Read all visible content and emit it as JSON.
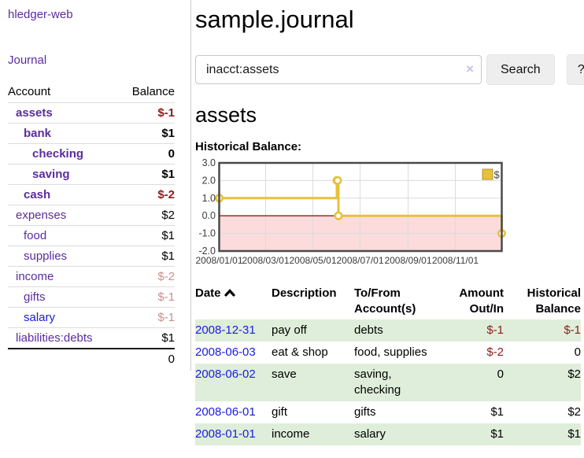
{
  "sidebar": {
    "brand": "hledger-web",
    "nav": {
      "journal": "Journal"
    },
    "accounts_table": {
      "headers": {
        "account": "Account",
        "balance": "Balance"
      },
      "rows": [
        {
          "name": "assets",
          "depth": 1,
          "bold": true,
          "balance": "$-1",
          "balance_style": "neg-strong"
        },
        {
          "name": "bank",
          "depth": 2,
          "bold": true,
          "balance": "$1",
          "balance_style": "pos"
        },
        {
          "name": "checking",
          "depth": 3,
          "bold": true,
          "balance": "0",
          "balance_style": "pos"
        },
        {
          "name": "saving",
          "depth": 3,
          "bold": true,
          "balance": "$1",
          "balance_style": "pos"
        },
        {
          "name": "cash",
          "depth": 2,
          "bold": true,
          "balance": "$-2",
          "balance_style": "neg-strong"
        },
        {
          "name": "expenses",
          "depth": 1,
          "bold": false,
          "balance": "$2",
          "balance_style": "pos"
        },
        {
          "name": "food",
          "depth": 2,
          "bold": false,
          "balance": "$1",
          "balance_style": "pos"
        },
        {
          "name": "supplies",
          "depth": 2,
          "bold": false,
          "balance": "$1",
          "balance_style": "pos"
        },
        {
          "name": "income",
          "depth": 1,
          "bold": false,
          "balance": "$-2",
          "balance_style": "neg-soft"
        },
        {
          "name": "gifts",
          "depth": 2,
          "bold": false,
          "balance": "$-1",
          "balance_style": "neg-soft"
        },
        {
          "name": "salary",
          "depth": 2,
          "bold": false,
          "balance": "$-1",
          "balance_style": "neg-soft",
          "link_style": "blue"
        },
        {
          "name": "liabilities:debts",
          "depth": 1,
          "bold": false,
          "balance": "$1",
          "balance_style": "pos"
        }
      ],
      "total": "0"
    }
  },
  "header": {
    "title": "sample.journal"
  },
  "search": {
    "value": "inacct:assets",
    "clear_icon": "×",
    "button": "Search",
    "help_button": "?"
  },
  "account_page": {
    "heading": "assets",
    "chart_label": "Historical Balance:"
  },
  "chart_data": {
    "type": "line",
    "step": true,
    "title": "Historical Balance",
    "xlim": [
      "2008-01-01",
      "2008-12-31"
    ],
    "ylim": [
      -2,
      3
    ],
    "y_ticks": [
      "3.0",
      "2.0",
      "1.0",
      "0.0",
      "-1.0",
      "-2.0"
    ],
    "x_tick_dates": [
      "2008-01-01",
      "2008-03-01",
      "2008-05-01",
      "2008-07-01",
      "2008-09-01",
      "2008-11-01"
    ],
    "x_tick_labels": [
      "2008/01/01",
      "2008/03/01",
      "2008/05/01",
      "2008/07/01",
      "2008/09/01",
      "2008/11/01"
    ],
    "grid": true,
    "legend": {
      "label": "$",
      "position": "top-right"
    },
    "series": [
      {
        "name": "$",
        "color": "#e8c13c",
        "points": [
          [
            "2008-01-01",
            1
          ],
          [
            "2008-06-01",
            2
          ],
          [
            "2008-06-02",
            2
          ],
          [
            "2008-06-03",
            0
          ],
          [
            "2008-12-31",
            -1
          ]
        ]
      }
    ],
    "colors": {
      "negative_region": "#fbdbdb",
      "zero_line": "#8e1a1a",
      "gridline": "#dcdcdc",
      "border": "#4a4a4a",
      "tick_text": "#3c3c3c"
    }
  },
  "register_table": {
    "headers": {
      "date": "Date",
      "description": "Description",
      "accounts": "To/From Account(s)",
      "amount": "Amount Out/In",
      "balance": "Historical Balance"
    },
    "rows": [
      {
        "date": "2008-12-31",
        "description": "pay off",
        "accounts": "debts",
        "amount": "$-1",
        "amount_style": "neg",
        "balance": "$-1",
        "balance_style": "neg"
      },
      {
        "date": "2008-06-03",
        "description": "eat & shop",
        "accounts": "food, supplies",
        "amount": "$-2",
        "amount_style": "neg",
        "balance": "0",
        "balance_style": "pos"
      },
      {
        "date": "2008-06-02",
        "description": "save",
        "accounts": "saving, checking",
        "amount": "0",
        "amount_style": "pos",
        "balance": "$2",
        "balance_style": "pos"
      },
      {
        "date": "2008-06-01",
        "description": "gift",
        "accounts": "gifts",
        "amount": "$1",
        "amount_style": "pos",
        "balance": "$2",
        "balance_style": "pos"
      },
      {
        "date": "2008-01-01",
        "description": "income",
        "accounts": "salary",
        "amount": "$1",
        "amount_style": "pos",
        "balance": "$1",
        "balance_style": "pos"
      }
    ]
  },
  "colors": {
    "link_purple": "#5b2c9e",
    "link_blue": "#1b1bdf",
    "neg_strong": "#8e1b1b",
    "neg_soft": "#c9908f",
    "row_green": "#deeeda",
    "button_bg": "#eeeeee"
  }
}
